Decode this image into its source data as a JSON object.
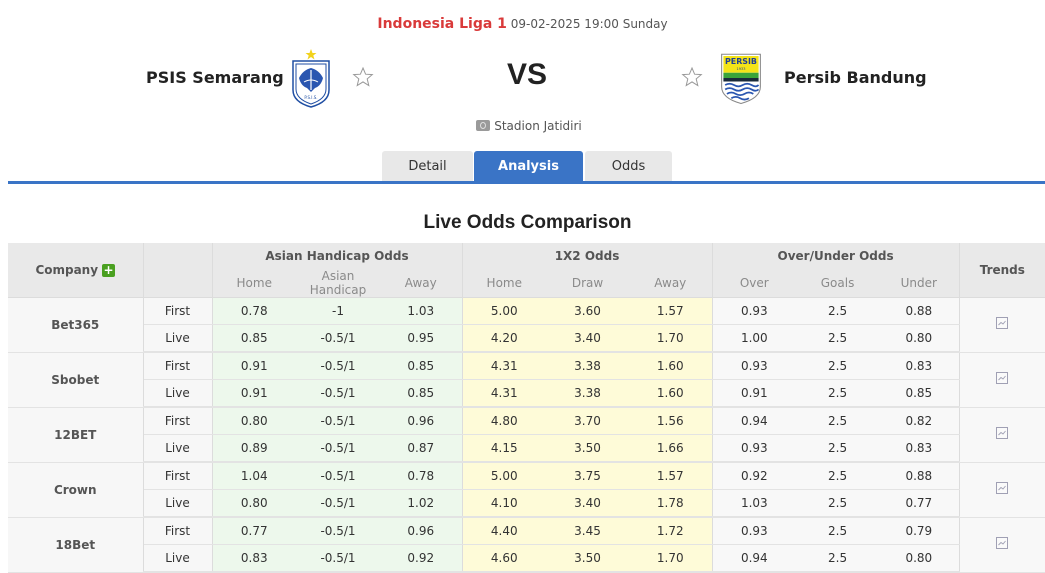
{
  "match": {
    "league": "Indonesia Liga 1",
    "datetime": "09-02-2025 19:00 Sunday",
    "home_team": "PSIS Semarang",
    "away_team": "Persib Bandung",
    "vs": "VS",
    "venue": "Stadion Jatidiri",
    "home_crest_text": "P.S.I.S.",
    "away_crest_text": "PERSIB",
    "away_crest_year": "1933"
  },
  "tabs": [
    {
      "label": "Detail",
      "active": false
    },
    {
      "label": "Analysis",
      "active": true
    },
    {
      "label": "Odds",
      "active": false
    }
  ],
  "section_title": "Live Odds Comparison",
  "table": {
    "headers": {
      "company": "Company",
      "asian_handicap": "Asian Handicap Odds",
      "x12": "1X2 Odds",
      "over_under": "Over/Under Odds",
      "trends": "Trends"
    },
    "subheaders": {
      "ah": [
        "Home",
        "Asian Handicap",
        "Away"
      ],
      "x12": [
        "Home",
        "Draw",
        "Away"
      ],
      "ou": [
        "Over",
        "Goals",
        "Under"
      ]
    },
    "companies": [
      {
        "name": "Bet365",
        "first": {
          "type": "First",
          "ah": [
            "0.78",
            "-1",
            "1.03"
          ],
          "x12": [
            "5.00",
            "3.60",
            "1.57"
          ],
          "ou": [
            "0.93",
            "2.5",
            "0.88"
          ]
        },
        "live": {
          "type": "Live",
          "ah": [
            "0.85",
            "-0.5/1",
            "0.95"
          ],
          "x12": [
            "4.20",
            "3.40",
            "1.70"
          ],
          "ou": [
            "1.00",
            "2.5",
            "0.80"
          ]
        }
      },
      {
        "name": "Sbobet",
        "first": {
          "type": "First",
          "ah": [
            "0.91",
            "-0.5/1",
            "0.85"
          ],
          "x12": [
            "4.31",
            "3.38",
            "1.60"
          ],
          "ou": [
            "0.93",
            "2.5",
            "0.83"
          ]
        },
        "live": {
          "type": "Live",
          "ah": [
            "0.91",
            "-0.5/1",
            "0.85"
          ],
          "x12": [
            "4.31",
            "3.38",
            "1.60"
          ],
          "ou": [
            "0.91",
            "2.5",
            "0.85"
          ]
        }
      },
      {
        "name": "12BET",
        "first": {
          "type": "First",
          "ah": [
            "0.80",
            "-0.5/1",
            "0.96"
          ],
          "x12": [
            "4.80",
            "3.70",
            "1.56"
          ],
          "ou": [
            "0.94",
            "2.5",
            "0.82"
          ]
        },
        "live": {
          "type": "Live",
          "ah": [
            "0.89",
            "-0.5/1",
            "0.87"
          ],
          "x12": [
            "4.15",
            "3.50",
            "1.66"
          ],
          "ou": [
            "0.93",
            "2.5",
            "0.83"
          ]
        }
      },
      {
        "name": "Crown",
        "first": {
          "type": "First",
          "ah": [
            "1.04",
            "-0.5/1",
            "0.78"
          ],
          "x12": [
            "5.00",
            "3.75",
            "1.57"
          ],
          "ou": [
            "0.92",
            "2.5",
            "0.88"
          ]
        },
        "live": {
          "type": "Live",
          "ah": [
            "0.80",
            "-0.5/1",
            "1.02"
          ],
          "x12": [
            "4.10",
            "3.40",
            "1.78"
          ],
          "ou": [
            "1.03",
            "2.5",
            "0.77"
          ]
        }
      },
      {
        "name": "18Bet",
        "first": {
          "type": "First",
          "ah": [
            "0.77",
            "-0.5/1",
            "0.96"
          ],
          "x12": [
            "4.40",
            "3.45",
            "1.72"
          ],
          "ou": [
            "0.93",
            "2.5",
            "0.79"
          ]
        },
        "live": {
          "type": "Live",
          "ah": [
            "0.83",
            "-0.5/1",
            "0.92"
          ],
          "x12": [
            "4.60",
            "3.50",
            "1.70"
          ],
          "ou": [
            "0.94",
            "2.5",
            "0.80"
          ]
        }
      }
    ]
  },
  "colors": {
    "accent_blue": "#3a74c6",
    "league_red": "#d93a3a",
    "ah_bg": "#edf8ec",
    "x12_bg": "#fefbd8",
    "plus_green": "#4aa020"
  }
}
